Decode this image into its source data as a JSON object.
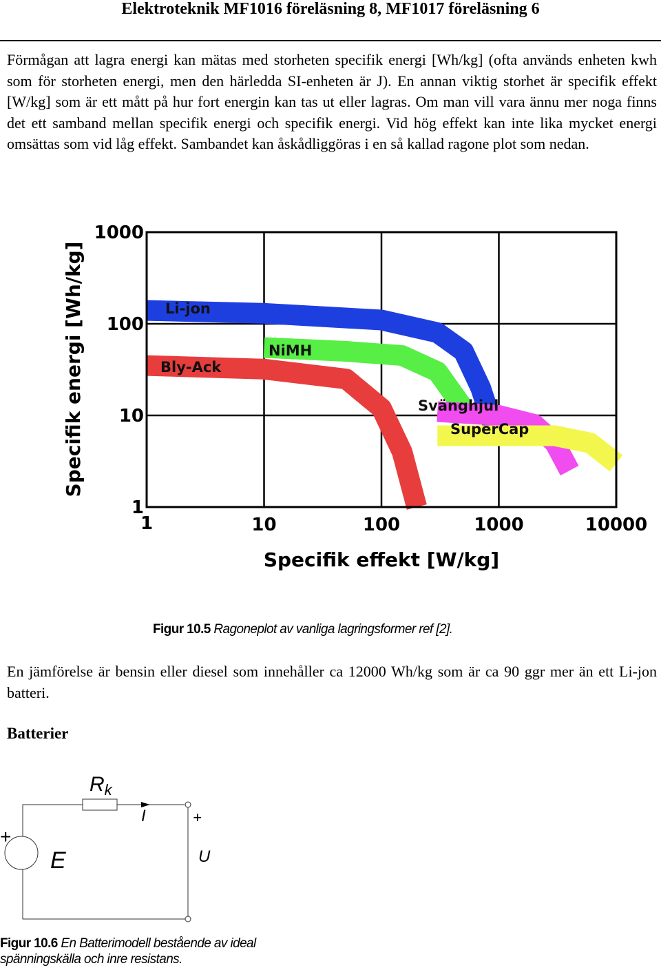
{
  "header": {
    "title": "Elektroteknik MF1016 föreläsning 8, MF1017 föreläsning 6"
  },
  "paragraphs": {
    "p1": "Förmågan att lagra energi kan mätas med storheten specifik energi [Wh/kg] (ofta används enheten kwh som för storheten energi, men den härledda SI-enheten är J). En annan viktig storhet är specifik effekt [W/kg] som är ett mått på hur fort energin kan tas ut eller lagras. Om man vill vara ännu mer noga finns det ett samband mellan specifik energi och specifik energi. Vid hög effekt kan inte lika mycket energi omsättas som vid låg effekt. Sambandet kan åskådliggöras i en så kallad ragone plot som nedan.",
    "p2": "En jämförelse är bensin eller diesel som innehåller ca 12000 Wh/kg som är ca 90 ggr mer än ett Li-jon batteri."
  },
  "section": {
    "batterier": "Batterier"
  },
  "figure1": {
    "label": "Figur  10.5",
    "caption": " Ragoneplot av vanliga lagringsformer ref [2]."
  },
  "figure2": {
    "label": "Figur 10.6",
    "caption": " En Batterimodell bestående av ideal spänningskälla och inre resistans."
  },
  "chart_data": {
    "type": "area",
    "xlabel": "Specifik effekt [W/kg]",
    "ylabel": "Specifik energi [Wh/kg]",
    "x_scale": "log",
    "y_scale": "log",
    "xlim": [
      1,
      10000
    ],
    "ylim": [
      1,
      1000
    ],
    "x_ticks": [
      "1",
      "10",
      "100",
      "1000",
      "10000"
    ],
    "y_ticks": [
      "1",
      "10",
      "100",
      "1000"
    ],
    "grid": true,
    "series": [
      {
        "name": "Li-jon",
        "color": "#1e3fe0",
        "points": [
          [
            1,
            140
          ],
          [
            10,
            130
          ],
          [
            100,
            110
          ],
          [
            300,
            80
          ],
          [
            500,
            50
          ],
          [
            700,
            20
          ],
          [
            1000,
            5
          ]
        ]
      },
      {
        "name": "NiMH",
        "color": "#57ee45",
        "points": [
          [
            10,
            55
          ],
          [
            50,
            50
          ],
          [
            150,
            45
          ],
          [
            300,
            30
          ],
          [
            500,
            12
          ]
        ]
      },
      {
        "name": "Bly-Ack",
        "color": "#e83d3d",
        "points": [
          [
            1,
            35
          ],
          [
            10,
            32
          ],
          [
            50,
            25
          ],
          [
            100,
            12
          ],
          [
            150,
            4
          ],
          [
            200,
            1
          ]
        ]
      },
      {
        "name": "Svänghjul",
        "color": "#f14cf0",
        "points": [
          [
            300,
            11
          ],
          [
            1000,
            10
          ],
          [
            2000,
            8
          ],
          [
            3000,
            5
          ],
          [
            4000,
            2.5
          ]
        ]
      },
      {
        "name": "SuperCap",
        "color": "#f3f74d",
        "points": [
          [
            300,
            6
          ],
          [
            1000,
            6
          ],
          [
            3000,
            6
          ],
          [
            6000,
            5
          ],
          [
            10000,
            3
          ]
        ]
      }
    ]
  },
  "circuit": {
    "resistor_label": "R",
    "resistor_sub": "k",
    "current_label": "I",
    "plus_source": "+",
    "plus_terminal": "+",
    "source_label": "E",
    "voltage_label": "U"
  }
}
